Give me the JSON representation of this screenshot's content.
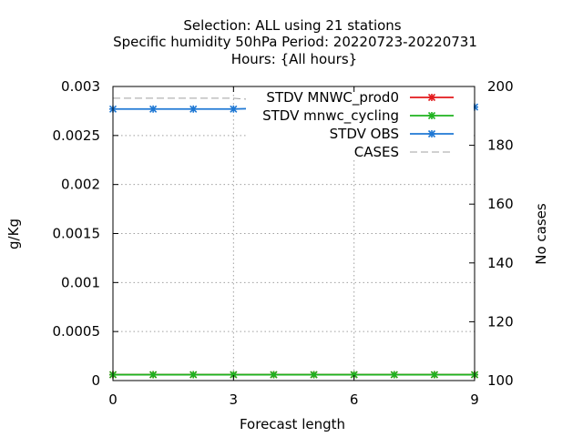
{
  "chart_data": {
    "type": "line",
    "title_lines": [
      "Selection: ALL using    21 stations",
      "Specific humidity 50hPa   Period: 20220723-20220731",
      "Hours: {All hours}"
    ],
    "xlabel": "Forecast length",
    "ylabel": "g/Kg",
    "y2label": "No cases",
    "xlim": [
      0,
      9
    ],
    "ylim": [
      0,
      0.003
    ],
    "y2lim": [
      100,
      200
    ],
    "xticks": [
      0,
      3,
      6,
      9
    ],
    "yticks": [
      {
        "v": 0,
        "label": "0"
      },
      {
        "v": 0.0005,
        "label": "0.0005"
      },
      {
        "v": 0.001,
        "label": "0.001"
      },
      {
        "v": 0.0015,
        "label": "0.0015"
      },
      {
        "v": 0.002,
        "label": "0.002"
      },
      {
        "v": 0.0025,
        "label": "0.0025"
      },
      {
        "v": 0.003,
        "label": "0.003"
      }
    ],
    "y2ticks": [
      100,
      120,
      140,
      160,
      180,
      200
    ],
    "grid": true,
    "legend_position": "top-right",
    "x": [
      0,
      1,
      2,
      3,
      4,
      5,
      6,
      7,
      8,
      9
    ],
    "series": [
      {
        "name": "STDV MNWC_prod0",
        "color": "#e31a1c",
        "axis": "y",
        "marker": "cross",
        "values": [
          6e-05,
          6e-05,
          6e-05,
          6e-05,
          6e-05,
          6e-05,
          6e-05,
          6e-05,
          6e-05,
          6e-05
        ]
      },
      {
        "name": "STDV mnwc_cycling",
        "color": "#1fb21f",
        "axis": "y",
        "marker": "cross",
        "values": [
          6e-05,
          6e-05,
          6e-05,
          6e-05,
          6e-05,
          6e-05,
          6e-05,
          6e-05,
          6e-05,
          6e-05
        ]
      },
      {
        "name": "STDV OBS",
        "color": "#1f78d4",
        "axis": "y",
        "marker": "cross",
        "values": [
          0.00277,
          0.00277,
          0.00277,
          0.00277,
          0.00278,
          0.00278,
          0.00278,
          0.00279,
          0.00279,
          0.00279
        ]
      },
      {
        "name": "CASES",
        "color": "#a0a0a0",
        "axis": "y2",
        "marker": "none",
        "dashed": true,
        "values": [
          196,
          196,
          196,
          196,
          195,
          195,
          195,
          194,
          194,
          193
        ]
      }
    ]
  }
}
